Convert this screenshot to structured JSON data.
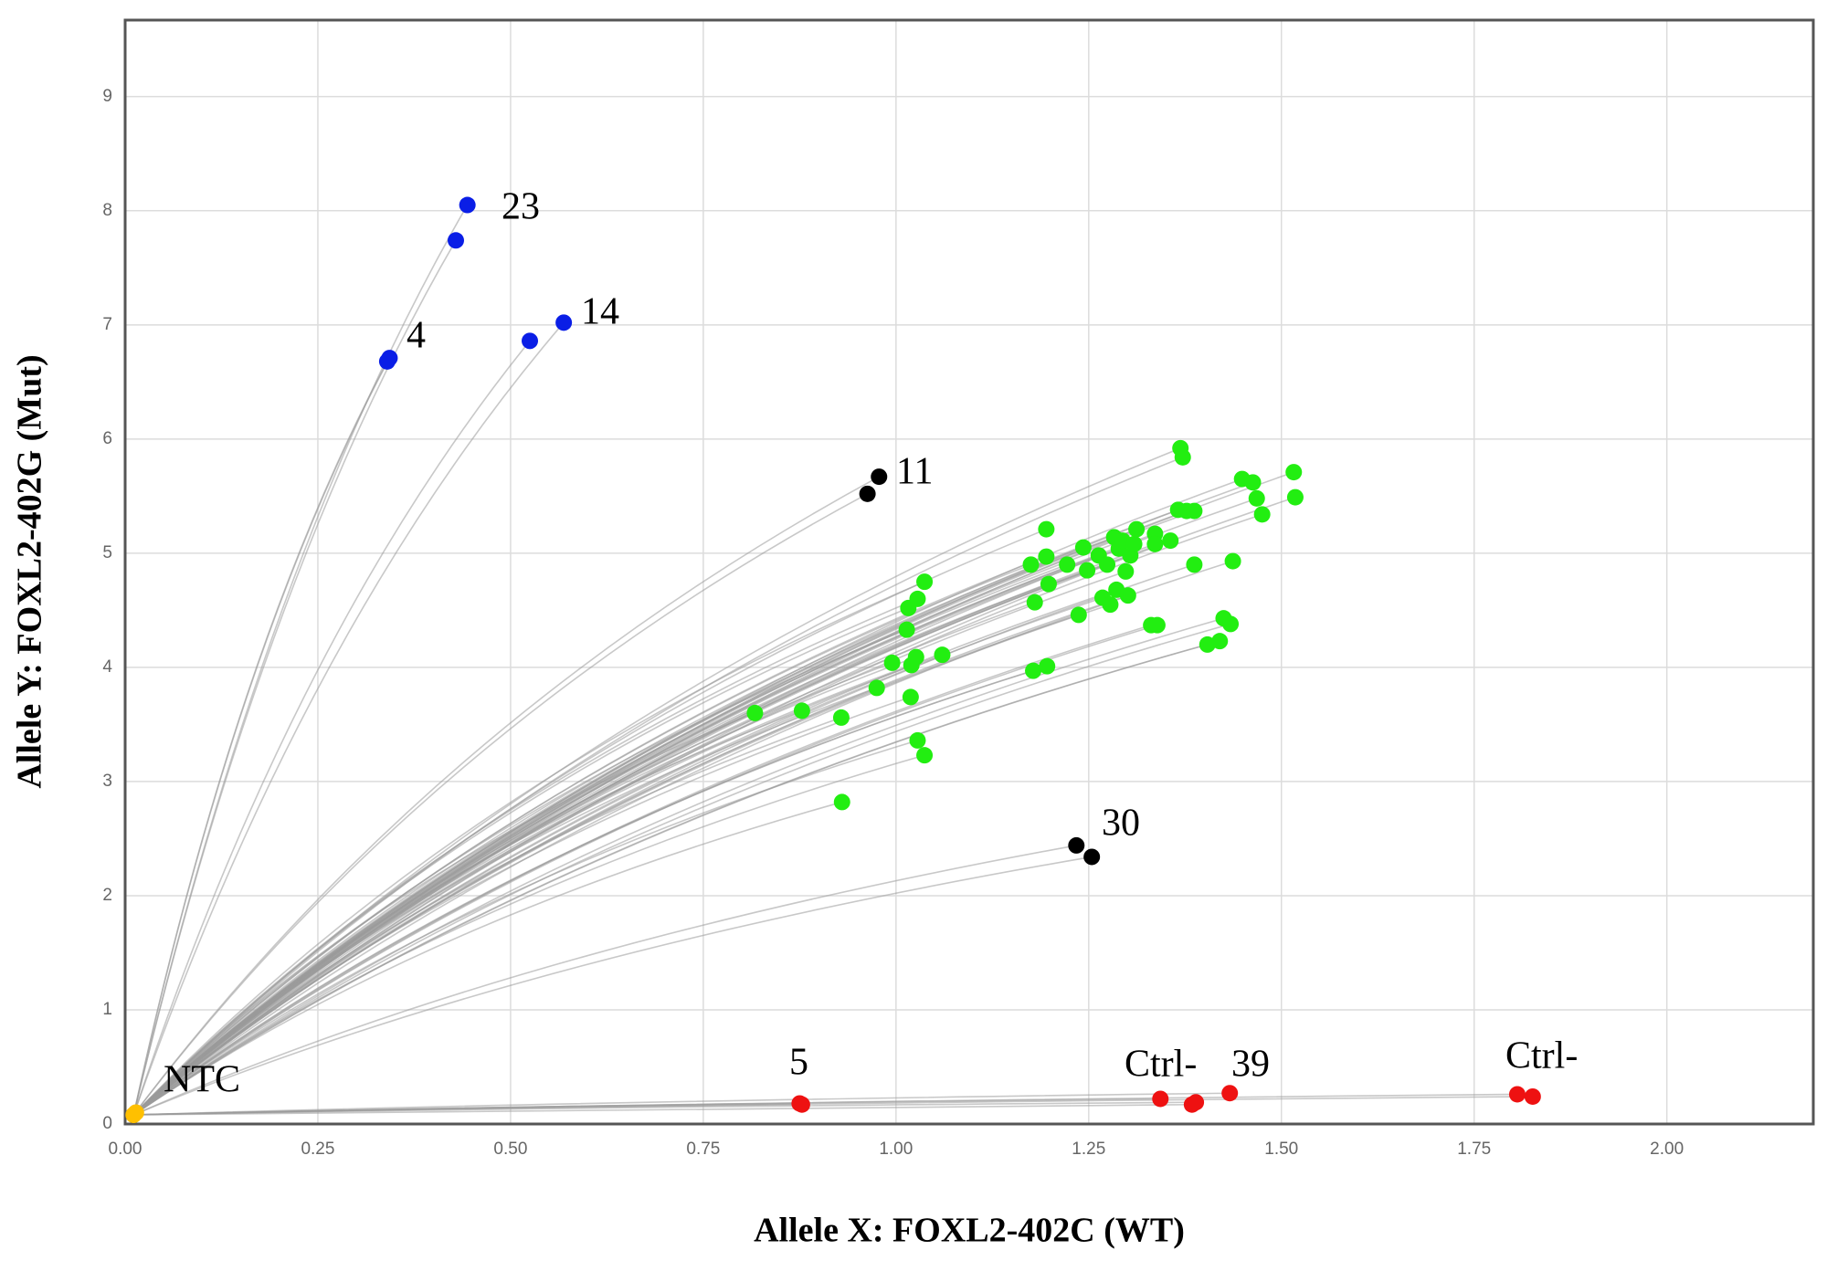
{
  "chart_data": {
    "type": "scatter",
    "x_label": "Allele X: FOXL2-402C (WT)",
    "y_label": "Allele Y: FOXL2-402G (Mut)",
    "xlim": [
      0,
      2.19
    ],
    "ylim": [
      0,
      9.67
    ],
    "xticks": [
      {
        "value": 0,
        "label": "0.00"
      },
      {
        "value": 0.25,
        "label": "0.25"
      },
      {
        "value": 0.5,
        "label": "0.50"
      },
      {
        "value": 0.75,
        "label": "0.75"
      },
      {
        "value": 1,
        "label": "1.00"
      },
      {
        "value": 1.25,
        "label": "1.25"
      },
      {
        "value": 1.5,
        "label": "1.50"
      },
      {
        "value": 1.75,
        "label": "1.75"
      },
      {
        "value": 2,
        "label": "2.00"
      }
    ],
    "yticks": [
      0,
      1,
      2,
      3,
      4,
      5,
      6,
      7,
      8,
      9
    ],
    "grid": true,
    "series": [
      {
        "color": "#0a1ee6",
        "x": [
          0.444,
          0.429,
          0.343,
          0.34,
          0.525,
          0.569
        ],
        "y": [
          8.05,
          7.74,
          6.71,
          6.68,
          6.86,
          7.02
        ]
      },
      {
        "color": "#22ee11",
        "x": [
          0.817,
          0.878,
          0.929,
          0.93,
          0.975,
          0.995,
          1.014,
          1.016,
          1.028,
          1.037,
          1.019,
          1.02,
          1.026,
          1.028,
          1.037,
          1.06,
          1.175,
          1.178,
          1.18,
          1.195,
          1.195,
          1.196,
          1.198,
          1.222,
          1.237,
          1.243,
          1.248,
          1.263,
          1.268,
          1.274,
          1.278,
          1.283,
          1.286,
          1.289,
          1.294,
          1.298,
          1.301,
          1.304,
          1.309,
          1.312,
          1.331,
          1.336,
          1.339,
          1.336,
          1.356,
          1.366,
          1.369,
          1.372,
          1.377,
          1.387,
          1.387,
          1.404,
          1.42,
          1.425,
          1.434,
          1.437,
          1.449,
          1.463,
          1.468,
          1.475,
          1.516,
          1.518
        ],
        "y": [
          3.6,
          3.62,
          3.56,
          2.82,
          3.82,
          4.04,
          4.33,
          4.52,
          4.6,
          4.75,
          3.74,
          4.02,
          4.09,
          3.36,
          3.23,
          4.11,
          4.9,
          3.97,
          4.57,
          5.21,
          4.97,
          4.01,
          4.73,
          4.9,
          4.46,
          5.05,
          4.85,
          4.98,
          4.61,
          4.9,
          4.55,
          5.14,
          4.68,
          5.04,
          5.11,
          4.84,
          4.63,
          4.98,
          5.08,
          5.21,
          4.37,
          5.17,
          4.37,
          5.08,
          5.11,
          5.38,
          5.92,
          5.84,
          5.37,
          5.37,
          4.9,
          4.2,
          4.23,
          4.43,
          4.38,
          4.93,
          5.65,
          5.62,
          5.48,
          5.34,
          5.71,
          5.49
        ]
      },
      {
        "color": "#000000",
        "x": [
          0.978,
          0.963,
          1.234,
          1.254
        ],
        "y": [
          5.67,
          5.52,
          2.44,
          2.34
        ]
      },
      {
        "color": "#ee1111",
        "x": [
          0.875,
          0.878,
          1.343,
          1.384,
          1.389,
          1.433,
          1.806,
          1.826
        ],
        "y": [
          0.18,
          0.17,
          0.22,
          0.17,
          0.19,
          0.27,
          0.26,
          0.24
        ]
      },
      {
        "color": "#ffc000",
        "x": [
          0.011,
          0.014
        ],
        "y": [
          0.08,
          0.1
        ]
      }
    ],
    "annotations": [
      "23",
      "4",
      "14",
      "11",
      "30",
      "5",
      "Ctrl-",
      "39",
      "Ctrl-",
      "NTC"
    ]
  }
}
